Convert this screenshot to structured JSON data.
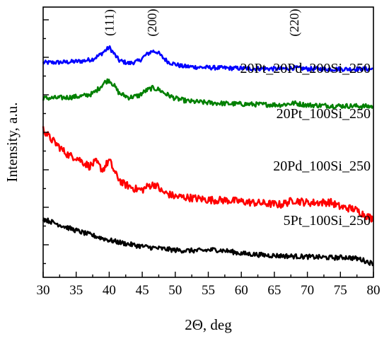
{
  "chart_data": {
    "type": "line",
    "xlabel": "2Θ, deg",
    "ylabel": "Intensity, a.u.",
    "xlim": [
      30,
      80
    ],
    "xticks": [
      30,
      35,
      40,
      45,
      50,
      55,
      60,
      65,
      70,
      75,
      80
    ],
    "ylim": [
      0,
      100
    ],
    "y_ticks_unlabeled": true,
    "grid": false,
    "legend": "labels placed next to each curve",
    "peak_labels": [
      {
        "text": "(111)",
        "x": 40
      },
      {
        "text": "(200)",
        "x": 46.5
      },
      {
        "text": "(220)",
        "x": 68
      }
    ],
    "series": [
      {
        "name": "20Pt_20Pd_200Si_250",
        "color": "#0000ff",
        "x": [
          30,
          32,
          34,
          36,
          37.5,
          38.5,
          39.5,
          40,
          40.7,
          41.5,
          43,
          44.5,
          45.5,
          46.5,
          47.3,
          48,
          49,
          51,
          54,
          58,
          62,
          66,
          68,
          70,
          74,
          77,
          80
        ],
        "y": [
          85.5,
          85.6,
          85.8,
          86.2,
          87.0,
          88.6,
          90.8,
          92.0,
          89.4,
          86.4,
          85.2,
          86.2,
          88.6,
          90.4,
          90.0,
          87.9,
          85.7,
          84.0,
          83.5,
          83.2,
          83.0,
          82.9,
          83.3,
          82.9,
          82.8,
          82.8,
          82.8
        ]
      },
      {
        "name": "20Pt_100Si_250",
        "color": "#008000",
        "x": [
          30,
          32,
          34,
          36,
          37.5,
          38.5,
          39.3,
          40,
          40.7,
          41.5,
          43,
          44.5,
          45.5,
          46.5,
          47.5,
          48.5,
          50,
          52,
          55,
          58,
          62,
          66,
          68,
          70,
          74,
          77,
          80
        ],
        "y": [
          70.5,
          70.6,
          70.9,
          71.4,
          72.4,
          74.8,
          77.2,
          78.2,
          76.0,
          72.6,
          70.8,
          71.6,
          73.6,
          74.8,
          74.2,
          72.4,
          70.4,
          69.2,
          68.6,
          68.2,
          67.9,
          67.7,
          68.4,
          67.6,
          67.3,
          67.2,
          67.0
        ]
      },
      {
        "name": "20Pd_100Si_250",
        "color": "#ff0000",
        "x": [
          30,
          31,
          32,
          33,
          34,
          35,
          36,
          37,
          38,
          39,
          40,
          41,
          42,
          43,
          44,
          45,
          46,
          47,
          48,
          50,
          52,
          55,
          58,
          62,
          66,
          68,
          70,
          73.5,
          75,
          77,
          80
        ],
        "y": [
          57.5,
          53.8,
          51.2,
          48.4,
          46.2,
          45.6,
          43.6,
          41.8,
          43.6,
          40.2,
          44.4,
          38.2,
          34.6,
          33.4,
          32.2,
          31.8,
          33.6,
          34.2,
          31.0,
          29.0,
          28.6,
          27.6,
          27.4,
          26.4,
          25.6,
          27.5,
          26.4,
          26.6,
          24.6,
          23.8,
          19.4
        ]
      },
      {
        "name": "5Pt_100Si_250",
        "color": "#000000",
        "x": [
          30,
          32,
          34,
          36,
          38,
          40,
          42,
          44,
          46,
          48,
          50,
          52,
          54,
          56,
          58,
          60,
          62,
          64,
          66,
          68,
          70,
          72,
          74,
          76,
          78,
          80
        ],
        "y": [
          19.6,
          17.6,
          15.6,
          13.8,
          12.2,
          10.6,
          9.4,
          8.4,
          7.6,
          7.0,
          6.4,
          6.2,
          6.2,
          6.6,
          6.0,
          5.0,
          4.6,
          4.2,
          4.0,
          3.8,
          3.6,
          3.4,
          3.2,
          3.4,
          2.6,
          0.6
        ]
      }
    ]
  }
}
